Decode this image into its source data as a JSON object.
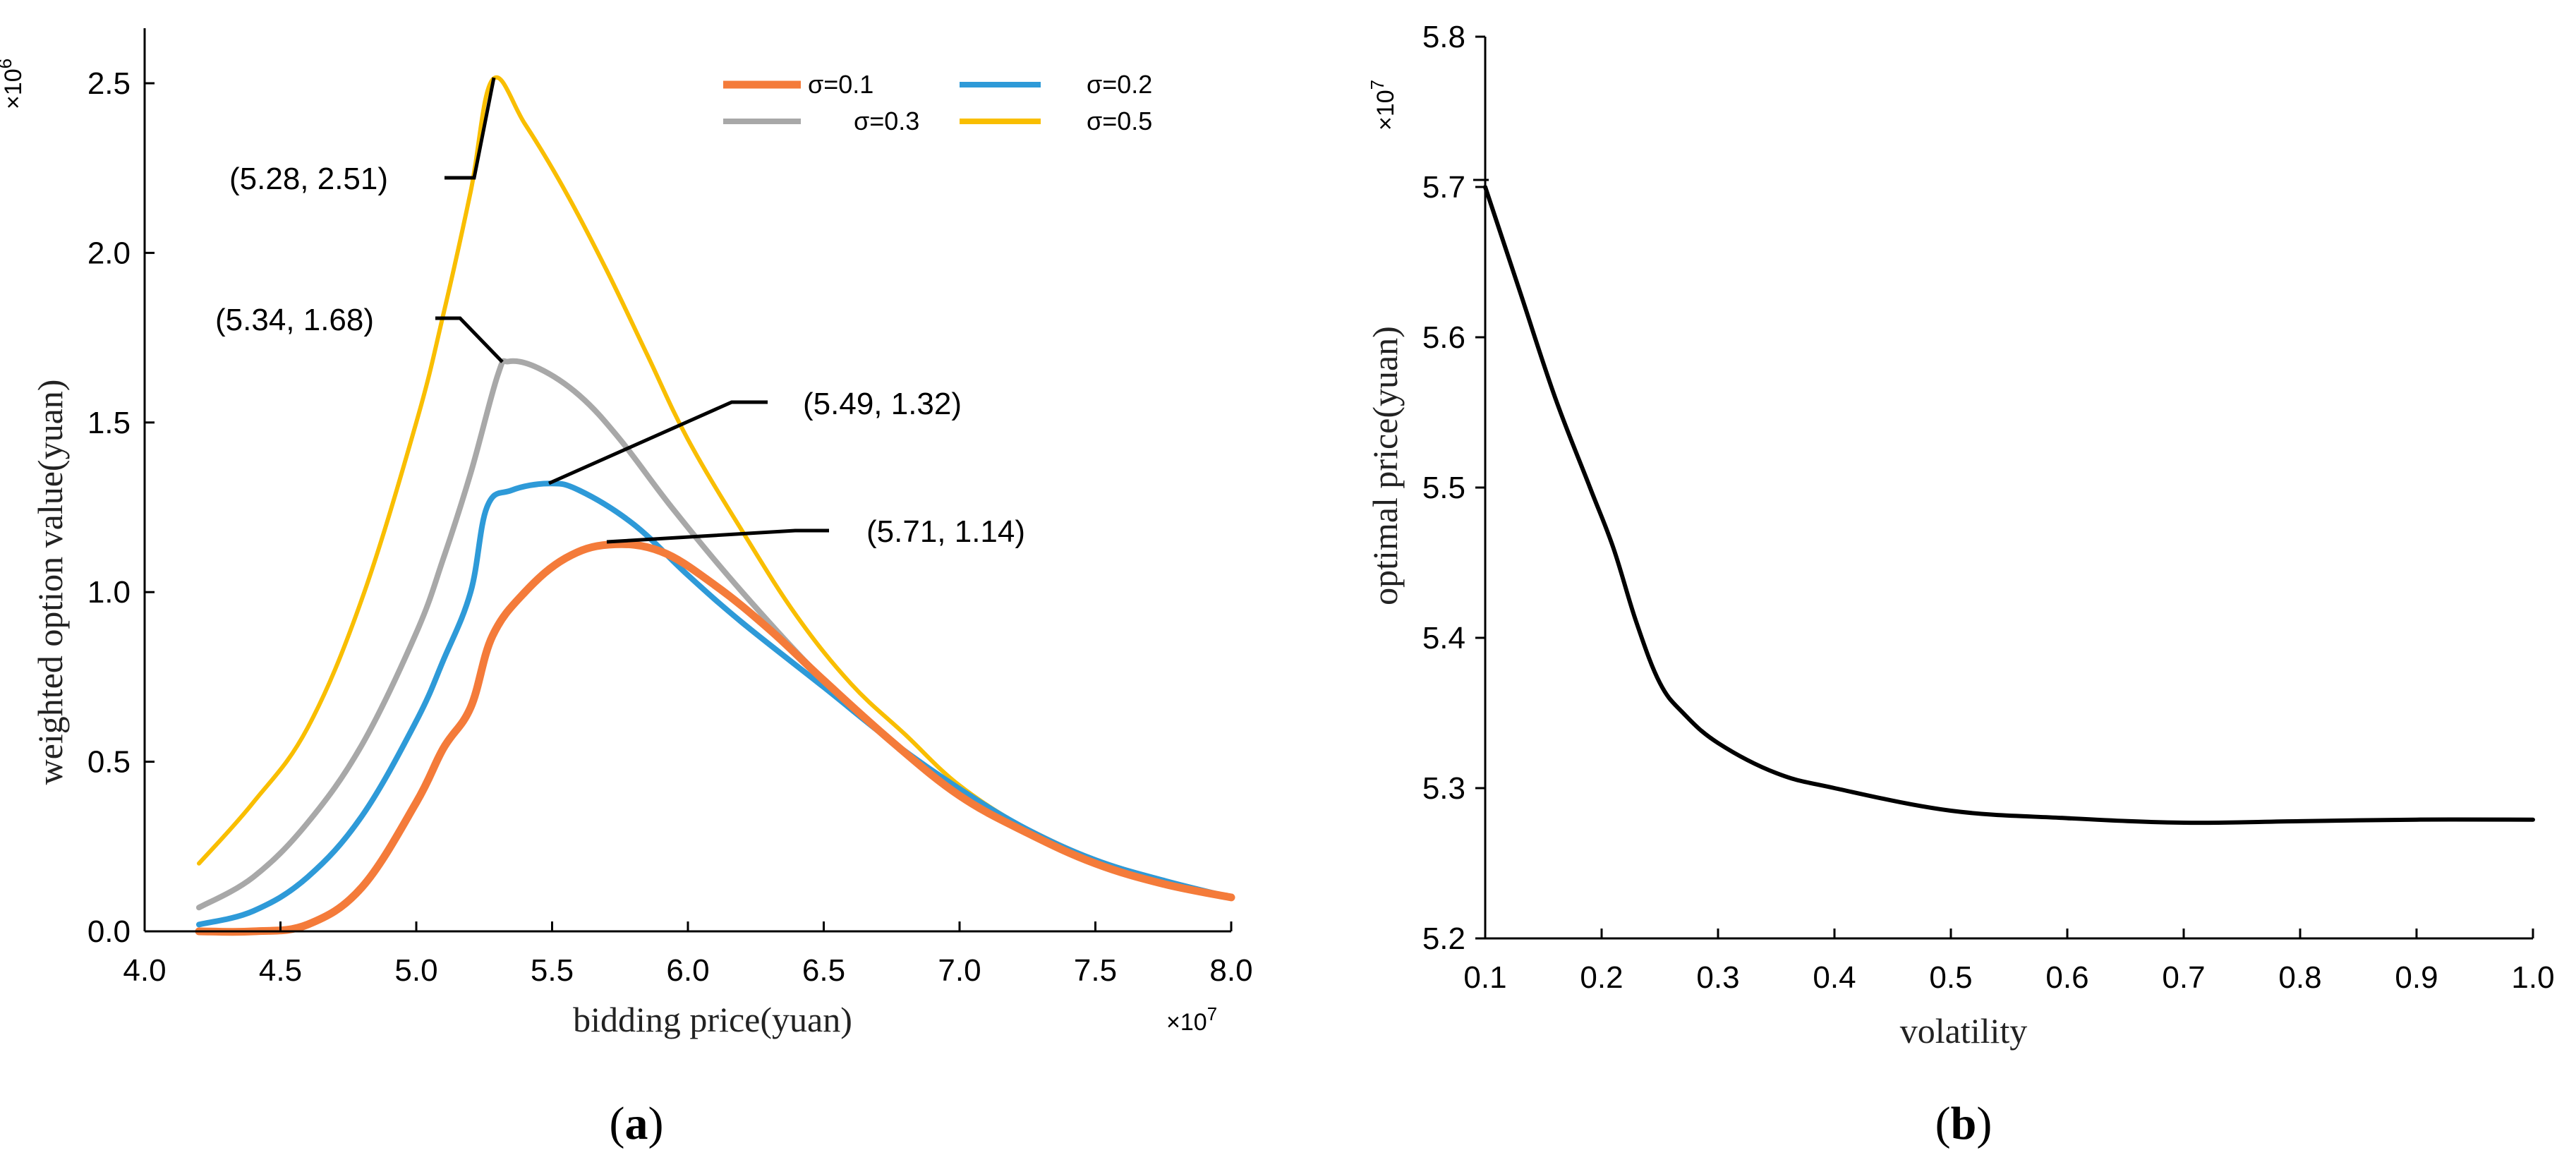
{
  "chart_data": [
    {
      "type": "line",
      "panel_label": "(a)",
      "panel_letter": "a",
      "xlabel": "bidding price(yuan)",
      "ylabel": "weighted option value(yuan)",
      "x_multiplier": "× 10^7",
      "y_multiplier": "× 10^6",
      "xlim": [
        4.0,
        8.0
      ],
      "ylim": [
        0.0,
        2.6
      ],
      "xticks": [
        "4.0",
        "4.5",
        "5.0",
        "5.5",
        "6.0",
        "6.5",
        "7.0",
        "7.5",
        "8.0"
      ],
      "yticks": [
        "0.0",
        "0.5",
        "1.0",
        "1.5",
        "2.0",
        "2.5"
      ],
      "legend_position": "top-right",
      "series": [
        {
          "name": "σ=0.1",
          "color": "#F47B3A",
          "x": [
            4.2,
            4.4,
            4.6,
            4.8,
            5.0,
            5.1,
            5.2,
            5.28,
            5.4,
            5.55,
            5.71,
            5.9,
            6.1,
            6.3,
            6.5,
            6.75,
            7.0,
            7.25,
            7.5,
            7.75,
            8.0
          ],
          "y": [
            0.0,
            0.0,
            0.02,
            0.13,
            0.38,
            0.54,
            0.66,
            0.87,
            1.0,
            1.1,
            1.14,
            1.12,
            1.02,
            0.89,
            0.74,
            0.56,
            0.4,
            0.29,
            0.2,
            0.14,
            0.1
          ]
        },
        {
          "name": "σ=0.2",
          "color": "#2E9AD8",
          "x": [
            4.2,
            4.4,
            4.6,
            4.8,
            5.0,
            5.1,
            5.2,
            5.26,
            5.35,
            5.49,
            5.6,
            5.8,
            6.0,
            6.2,
            6.5,
            6.75,
            7.0,
            7.25,
            7.5,
            7.75,
            8.0
          ],
          "y": [
            0.02,
            0.06,
            0.16,
            0.34,
            0.62,
            0.8,
            1.0,
            1.25,
            1.3,
            1.32,
            1.3,
            1.2,
            1.05,
            0.91,
            0.72,
            0.56,
            0.42,
            0.3,
            0.21,
            0.15,
            0.1
          ]
        },
        {
          "name": "σ=0.3",
          "color": "#A8A8A8",
          "x": [
            4.2,
            4.4,
            4.6,
            4.8,
            5.0,
            5.1,
            5.2,
            5.3,
            5.34,
            5.45,
            5.6,
            5.75,
            5.95,
            6.2,
            6.5,
            6.75,
            7.0,
            7.25,
            7.5,
            7.75,
            8.0
          ],
          "y": [
            0.07,
            0.16,
            0.32,
            0.55,
            0.88,
            1.1,
            1.35,
            1.64,
            1.68,
            1.66,
            1.58,
            1.45,
            1.24,
            1.0,
            0.74,
            0.56,
            0.41,
            0.3,
            0.21,
            0.15,
            0.1
          ]
        },
        {
          "name": "σ=0.5",
          "color": "#F9BE00",
          "x": [
            4.2,
            4.4,
            4.6,
            4.8,
            5.0,
            5.1,
            5.2,
            5.28,
            5.4,
            5.55,
            5.7,
            5.85,
            6.0,
            6.2,
            6.4,
            6.6,
            6.8,
            7.0,
            7.25,
            7.5,
            7.75,
            8.0
          ],
          "y": [
            0.2,
            0.38,
            0.6,
            0.98,
            1.5,
            1.82,
            2.18,
            2.51,
            2.38,
            2.18,
            1.95,
            1.7,
            1.45,
            1.18,
            0.93,
            0.73,
            0.58,
            0.43,
            0.3,
            0.2,
            0.15,
            0.1
          ]
        }
      ],
      "annotations": [
        {
          "text": "(5.28, 2.51)",
          "x": 5.28,
          "y": 2.51
        },
        {
          "text": "(5.34, 1.68)",
          "x": 5.34,
          "y": 1.68
        },
        {
          "text": "(5.49, 1.32)",
          "x": 5.49,
          "y": 1.32
        },
        {
          "text": "(5.71, 1.14)",
          "x": 5.71,
          "y": 1.14
        }
      ]
    },
    {
      "type": "line",
      "panel_label": "(b)",
      "panel_letter": "b",
      "xlabel": "volatility",
      "ylabel": "optimal price(yuan)",
      "y_multiplier": "× 10^7",
      "xlim": [
        0.1,
        1.0
      ],
      "ylim": [
        5.2,
        5.8
      ],
      "xticks": [
        "0.1",
        "0.2",
        "0.3",
        "0.4",
        "0.5",
        "0.6",
        "0.7",
        "0.8",
        "0.9",
        "1.0"
      ],
      "yticks": [
        "5.2",
        "5.3",
        "5.4",
        "5.5",
        "5.6",
        "5.7",
        "5.8"
      ],
      "series": [
        {
          "name": "optimal price",
          "color": "#000000",
          "x": [
            0.1,
            0.13,
            0.16,
            0.19,
            0.21,
            0.23,
            0.25,
            0.27,
            0.3,
            0.35,
            0.4,
            0.5,
            0.6,
            0.7,
            0.8,
            0.9,
            1.0
          ],
          "y": [
            5.7,
            5.63,
            5.56,
            5.5,
            5.46,
            5.41,
            5.37,
            5.35,
            5.33,
            5.31,
            5.3,
            5.285,
            5.28,
            5.277,
            5.278,
            5.279,
            5.279
          ]
        }
      ]
    }
  ]
}
